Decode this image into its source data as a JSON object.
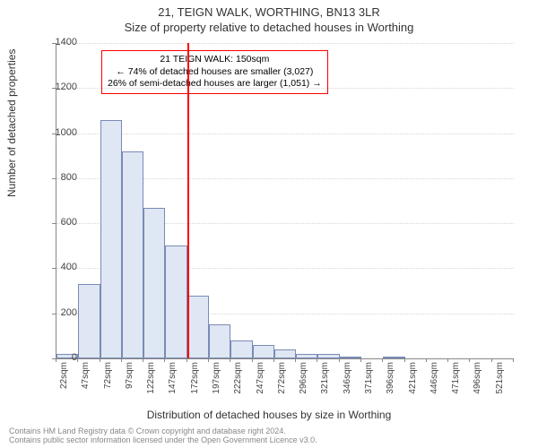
{
  "titles": {
    "line1": "21, TEIGN WALK, WORTHING, BN13 3LR",
    "line2": "Size of property relative to detached houses in Worthing"
  },
  "axes": {
    "ylabel": "Number of detached properties",
    "xlabel": "Distribution of detached houses by size in Worthing",
    "ylim": [
      0,
      1400
    ],
    "ytick_step": 200,
    "label_fontsize": 12,
    "tick_fontsize": 11
  },
  "histogram": {
    "type": "bar",
    "bar_fill": "#dfe6f4",
    "bar_stroke": "#7a8bb5",
    "categories": [
      "22sqm",
      "47sqm",
      "72sqm",
      "97sqm",
      "122sqm",
      "147sqm",
      "172sqm",
      "197sqm",
      "222sqm",
      "247sqm",
      "272sqm",
      "296sqm",
      "321sqm",
      "346sqm",
      "371sqm",
      "396sqm",
      "421sqm",
      "446sqm",
      "471sqm",
      "496sqm",
      "521sqm"
    ],
    "values": [
      20,
      330,
      1060,
      920,
      670,
      500,
      280,
      150,
      80,
      60,
      40,
      20,
      20,
      10,
      0,
      10,
      0,
      0,
      0,
      0,
      0
    ]
  },
  "marker": {
    "bin_index": 5,
    "color": "#ff0000",
    "width": 2
  },
  "annotation": {
    "border_color": "#ff0000",
    "lines": [
      "21 TEIGN WALK: 150sqm",
      "← 74% of detached houses are smaller (3,027)",
      "26% of semi-detached houses are larger (1,051) →"
    ]
  },
  "footer": {
    "line1": "Contains HM Land Registry data © Crown copyright and database right 2024.",
    "line2": "Contains public sector information licensed under the Open Government Licence v3.0."
  },
  "colors": {
    "background": "#ffffff",
    "grid": "#d6d6d6",
    "axis": "#888888",
    "text": "#333333"
  }
}
